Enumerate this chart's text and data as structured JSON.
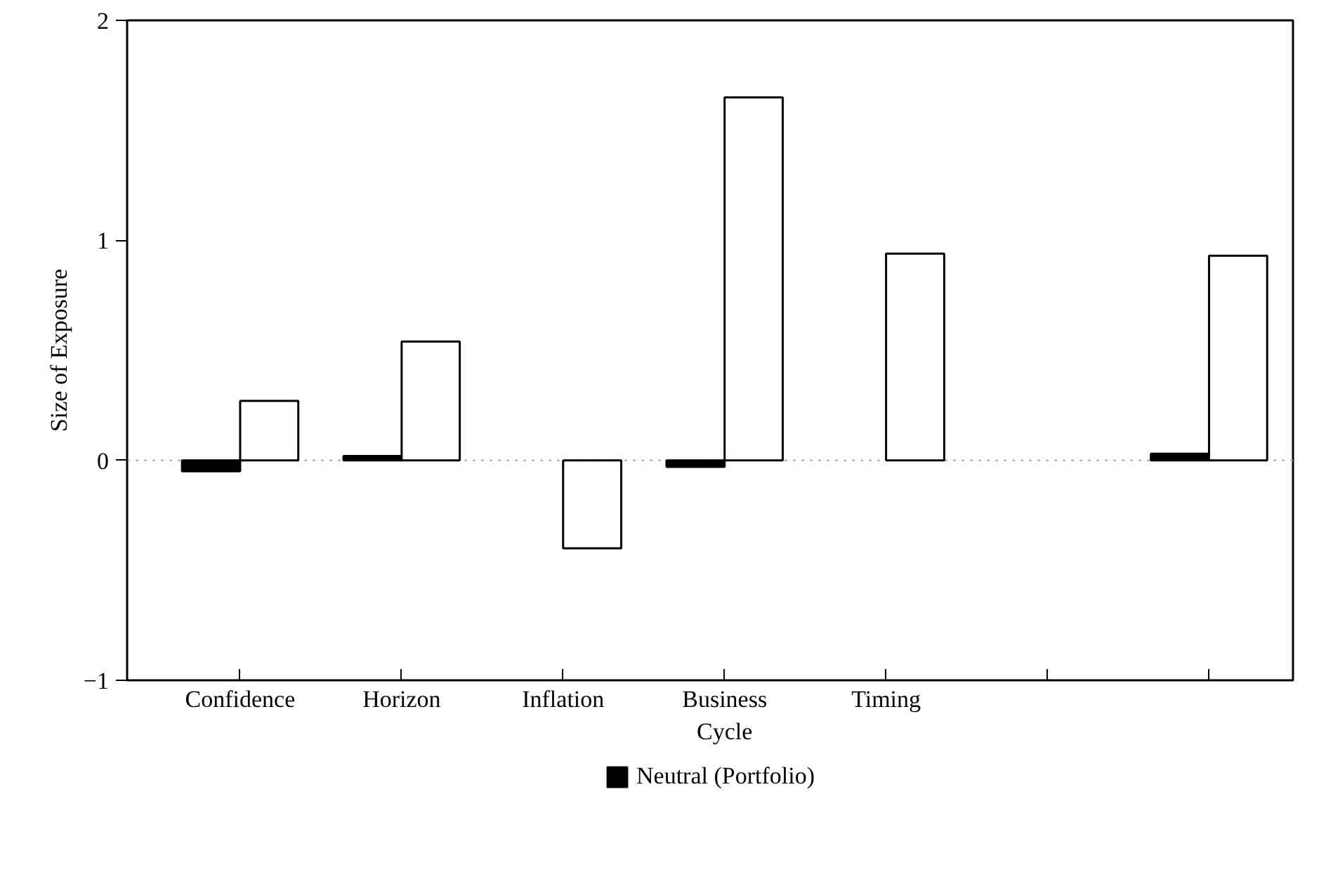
{
  "chart_data": {
    "type": "bar",
    "ylabel": "Size of Exposure",
    "categories": [
      "Confidence",
      "Horizon",
      "Inflation",
      "Business Cycle",
      "Timing",
      null,
      null
    ],
    "series": [
      {
        "color": "#ffffff",
        "values": [
          0.27,
          0.54,
          -0.4,
          1.65,
          0.94,
          null,
          0.93
        ]
      },
      {
        "name": "Neutral (Portfolio)",
        "color": "#000000",
        "values": [
          -0.05,
          0.02,
          null,
          -0.03,
          null,
          null,
          0.03
        ]
      }
    ],
    "ylim": [
      -1,
      2
    ],
    "yticks": [
      -1,
      0,
      1,
      2
    ],
    "ref_lines": [
      {
        "axis": "y",
        "value": 0,
        "color": "#aaaaaa",
        "line_style": "dotted"
      }
    ],
    "grid": false,
    "legend": "bottom"
  }
}
